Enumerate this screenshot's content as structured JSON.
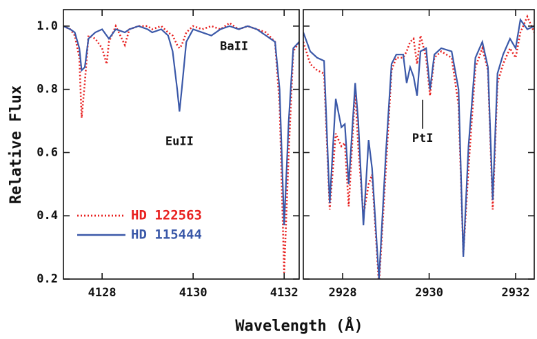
{
  "chart_data": [
    {
      "type": "line",
      "ylabel": "Relative Flux",
      "xlabel": "Wavelength (Å)",
      "xlim": [
        4127.15,
        4132.33
      ],
      "ylim": [
        0.2,
        1.052
      ],
      "xticks": [
        4128,
        4130,
        4132
      ],
      "yticks": [
        0.2,
        0.4,
        0.6,
        0.8,
        {
          "value": 1,
          "label": "1.0"
        }
      ],
      "legend": "lower left",
      "x": [
        4127.15,
        4127.3,
        4127.4,
        4127.5,
        4127.55,
        4127.62,
        4127.7,
        4127.85,
        4128.0,
        4128.1,
        4128.15,
        4128.3,
        4128.5,
        4128.6,
        4128.8,
        4129.0,
        4129.1,
        4129.3,
        4129.45,
        4129.55,
        4129.65,
        4129.7,
        4129.75,
        4129.85,
        4130.0,
        4130.2,
        4130.4,
        4130.6,
        4130.8,
        4131.0,
        4131.2,
        4131.4,
        4131.6,
        4131.8,
        4131.9,
        4132.0,
        4132.1,
        4132.2,
        4132.33
      ],
      "series": [
        {
          "name": "HD 122563",
          "color": "#e8201f",
          "linestyle": "dotted",
          "values": [
            1.0,
            0.99,
            0.97,
            0.9,
            0.71,
            0.82,
            0.97,
            0.96,
            0.93,
            0.88,
            0.95,
            1.0,
            0.94,
            0.99,
            1.0,
            1.0,
            0.99,
            1.0,
            0.98,
            0.97,
            0.94,
            0.93,
            0.94,
            0.98,
            1.0,
            0.99,
            1.0,
            0.99,
            1.01,
            0.99,
            1.0,
            0.99,
            0.98,
            0.95,
            0.75,
            0.22,
            0.6,
            0.92,
            0.95
          ]
        },
        {
          "name": "HD 115444",
          "color": "#3a58a8",
          "linestyle": "solid",
          "values": [
            1.0,
            0.99,
            0.98,
            0.93,
            0.86,
            0.87,
            0.96,
            0.98,
            0.99,
            0.97,
            0.96,
            0.99,
            0.98,
            0.99,
            1.0,
            0.99,
            0.98,
            0.99,
            0.97,
            0.92,
            0.8,
            0.73,
            0.8,
            0.95,
            0.99,
            0.98,
            0.97,
            0.99,
            1.0,
            0.99,
            1.0,
            0.99,
            0.97,
            0.95,
            0.8,
            0.37,
            0.7,
            0.93,
            0.95
          ]
        }
      ],
      "annotations": [
        {
          "text": "BaII",
          "x": 4130.9,
          "y": 0.935
        },
        {
          "text": "EuII",
          "x": 4129.7,
          "y": 0.635
        }
      ]
    },
    {
      "type": "line",
      "xlim": [
        2927.09,
        2932.43
      ],
      "ylim": [
        0.2,
        1.052
      ],
      "xticks": [
        2928,
        2930,
        2932
      ],
      "x": [
        2927.09,
        2927.25,
        2927.41,
        2927.57,
        2927.7,
        2927.84,
        2927.97,
        2928.05,
        2928.14,
        2928.29,
        2928.36,
        2928.48,
        2928.6,
        2928.68,
        2928.84,
        2929.0,
        2929.13,
        2929.24,
        2929.4,
        2929.48,
        2929.56,
        2929.64,
        2929.72,
        2929.8,
        2929.93,
        2930.02,
        2930.12,
        2930.28,
        2930.52,
        2930.68,
        2930.79,
        2930.91,
        2931.07,
        2931.23,
        2931.36,
        2931.47,
        2931.58,
        2931.71,
        2931.87,
        2932.0,
        2932.11,
        2932.27,
        2932.43
      ],
      "series": [
        {
          "name": "HD 122563",
          "color": "#e8201f",
          "linestyle": "dotted",
          "values": [
            0.95,
            0.88,
            0.86,
            0.85,
            0.42,
            0.66,
            0.62,
            0.63,
            0.43,
            0.8,
            0.62,
            0.4,
            0.5,
            0.53,
            0.18,
            0.55,
            0.86,
            0.9,
            0.9,
            0.92,
            0.95,
            0.96,
            0.88,
            0.97,
            0.9,
            0.78,
            0.9,
            0.92,
            0.9,
            0.75,
            0.28,
            0.55,
            0.87,
            0.93,
            0.86,
            0.42,
            0.82,
            0.88,
            0.93,
            0.9,
            0.98,
            1.03,
            0.98
          ]
        },
        {
          "name": "HD 115444",
          "color": "#3a58a8",
          "linestyle": "solid",
          "values": [
            0.98,
            0.92,
            0.9,
            0.89,
            0.44,
            0.77,
            0.68,
            0.69,
            0.5,
            0.82,
            0.7,
            0.37,
            0.64,
            0.55,
            0.2,
            0.6,
            0.88,
            0.91,
            0.91,
            0.82,
            0.87,
            0.84,
            0.78,
            0.92,
            0.93,
            0.8,
            0.91,
            0.93,
            0.92,
            0.8,
            0.27,
            0.62,
            0.9,
            0.95,
            0.87,
            0.45,
            0.85,
            0.91,
            0.96,
            0.93,
            1.02,
            0.99,
            1.0
          ]
        }
      ],
      "annotations": [
        {
          "text": "PtI",
          "x": 2929.85,
          "y": 0.645
        }
      ]
    }
  ]
}
